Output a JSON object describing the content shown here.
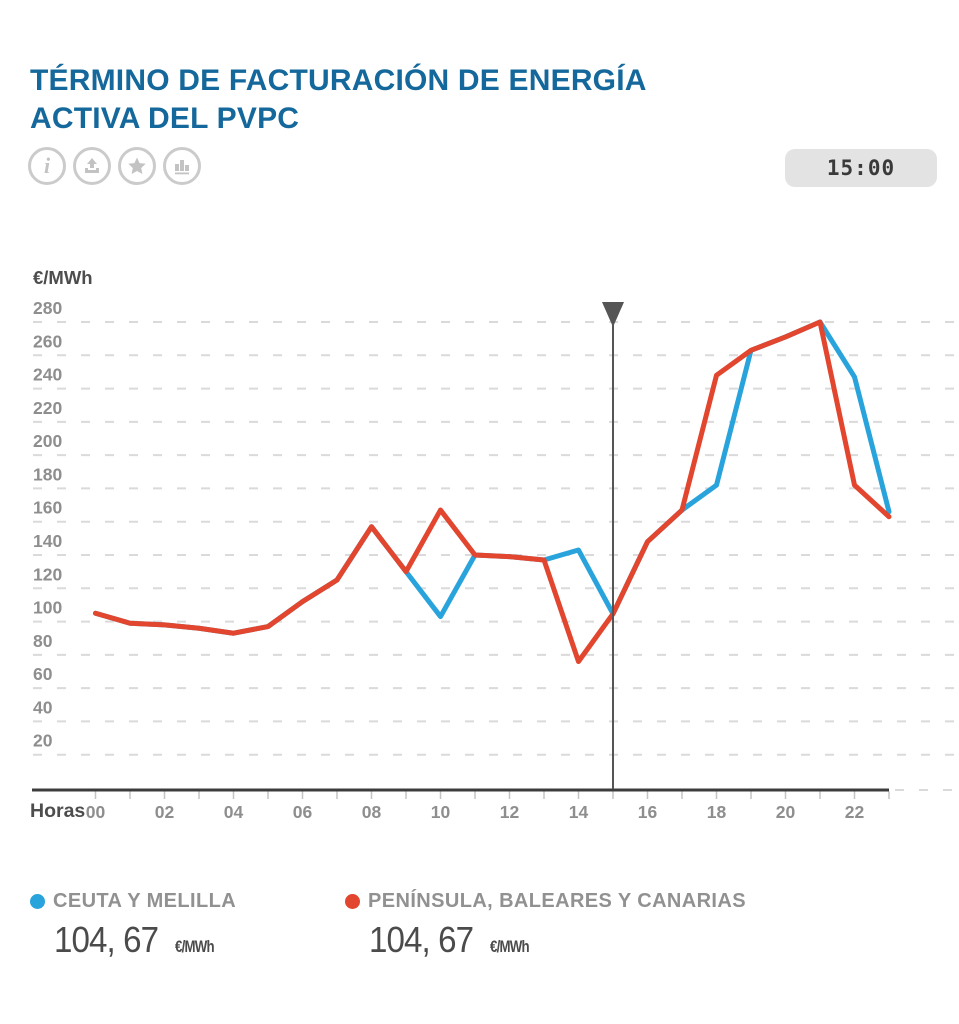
{
  "header": {
    "title": "TÉRMINO DE FACTURACIÓN DE ENERGÍA ACTIVA DEL PVPC",
    "time": "15:00",
    "toolbar": {
      "info": "info",
      "export": "export",
      "favorite": "favorite",
      "chart_type": "bar-chart"
    }
  },
  "chart_data": {
    "type": "line",
    "title": "TÉRMINO DE FACTURACIÓN DE ENERGÍA ACTIVA DEL PVPC",
    "xlabel": "Horas",
    "ylabel": "€/MWh",
    "x": [
      0,
      1,
      2,
      3,
      4,
      5,
      6,
      7,
      8,
      9,
      10,
      11,
      12,
      13,
      14,
      15,
      16,
      17,
      18,
      19,
      20,
      21,
      22,
      23
    ],
    "x_tick_labels": [
      "00",
      "02",
      "04",
      "06",
      "08",
      "10",
      "12",
      "14",
      "16",
      "18",
      "20",
      "22"
    ],
    "ylim": [
      0,
      280
    ],
    "ytick_step": 20,
    "grid": true,
    "legend_position": "bottom",
    "marker_hour": 15,
    "series": [
      {
        "name": "CEUTA Y MELILLA",
        "color": "#29a3dc",
        "values": [
          105,
          99,
          98,
          96,
          93,
          97,
          112,
          125,
          157,
          130,
          103,
          140,
          139,
          137,
          143,
          104.67,
          148,
          167,
          182,
          263,
          271,
          280,
          247,
          166
        ]
      },
      {
        "name": "PENÍNSULA, BALEARES Y CANARIAS",
        "color": "#e2462f",
        "values": [
          105,
          99,
          98,
          96,
          93,
          97,
          112,
          125,
          157,
          130,
          167,
          140,
          139,
          137,
          76,
          104.67,
          148,
          167,
          248,
          263,
          271,
          280,
          182,
          163
        ]
      }
    ]
  },
  "legend": {
    "items": [
      {
        "label": "CEUTA Y MELILLA",
        "value": "104, 67",
        "unit": "€/MWh",
        "color": "#29a3dc"
      },
      {
        "label": "PENÍNSULA, BALEARES Y CANARIAS",
        "value": "104, 67",
        "unit": "€/MWh",
        "color": "#e2462f"
      }
    ]
  },
  "colors": {
    "title": "#15689b",
    "axis": "#3c3c3c",
    "grid": "#dadada",
    "tick_text": "#8e8e8e",
    "axis_label_text": "#4d4d4d",
    "marker": "#555555"
  }
}
